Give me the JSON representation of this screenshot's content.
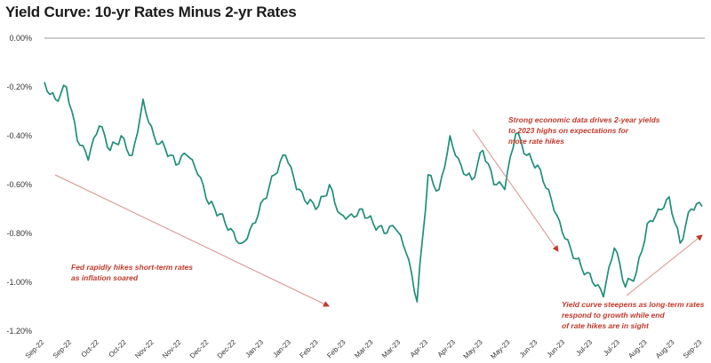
{
  "chart_data": {
    "type": "line",
    "title": "Yield Curve: 10-yr Rates Minus 2-yr Rates",
    "xlabel": "",
    "ylabel": "",
    "ylim": [
      -1.2,
      0.0
    ],
    "grid": false,
    "y_ticks": [
      "0.00%",
      "-0.20%",
      "-0.40%",
      "-0.60%",
      "-0.80%",
      "-1.00%",
      "-1.20%"
    ],
    "x_ticks": [
      "Sep-22",
      "Sep-22",
      "Oct-22",
      "Oct-22",
      "Nov-22",
      "Nov-22",
      "Dec-22",
      "Dec-22",
      "Jan-23",
      "Jan-23",
      "Feb-23",
      "Feb-23",
      "Mar-23",
      "Mar-23",
      "Apr-23",
      "Apr-23",
      "May-23",
      "May-23",
      "Jun-23",
      "Jun-23",
      "Jul-23",
      "Jul-23",
      "Aug-23",
      "Aug-23",
      "Sep-23"
    ],
    "line_color": "#1f8f78",
    "annotation_color": "#c0392b",
    "series": [
      {
        "x": [
          0,
          0.4,
          0.8,
          1.2,
          1.6,
          2.0,
          2.4,
          2.8,
          3.2,
          3.6,
          4.0,
          4.4,
          4.8,
          5.2,
          5.6,
          6.0,
          6.4,
          6.8,
          7.2,
          7.6,
          8.0,
          8.4,
          8.8,
          9.2,
          9.6,
          10.0,
          10.4,
          10.8,
          11.2,
          11.6,
          12.0,
          12.4,
          12.8,
          13.2,
          13.6,
          14.0,
          14.4,
          14.8,
          15.2,
          15.6,
          16.0,
          16.4,
          16.8,
          17.2,
          17.6,
          18.0,
          18.4,
          18.8,
          19.2,
          19.6,
          20.0,
          20.4,
          20.8,
          21.2,
          21.6,
          22.0,
          22.4,
          22.8,
          23.2,
          23.6,
          24.0
        ],
        "values": [
          -0.18,
          -0.25,
          -0.2,
          -0.42,
          -0.5,
          -0.36,
          -0.46,
          -0.4,
          -0.48,
          -0.25,
          -0.4,
          -0.45,
          -0.52,
          -0.48,
          -0.56,
          -0.68,
          -0.72,
          -0.78,
          -0.84,
          -0.76,
          -0.66,
          -0.56,
          -0.48,
          -0.62,
          -0.68,
          -0.69,
          -0.6,
          -0.72,
          -0.72,
          -0.7,
          -0.76,
          -0.8,
          -0.78,
          -0.88,
          -1.08,
          -0.56,
          -0.62,
          -0.4,
          -0.52,
          -0.58,
          -0.46,
          -0.6,
          -0.62,
          -0.39,
          -0.48,
          -0.52,
          -0.62,
          -0.75,
          -0.86,
          -0.94,
          -1.0,
          -1.06,
          -0.86,
          -1.02,
          -0.96,
          -0.76,
          -0.7,
          -0.65,
          -0.84,
          -0.7,
          -0.69
        ]
      }
    ],
    "annotations": [
      "Strong economic data drives 2-year yields to 2023 highs on expectations for more rate hikes",
      "Fed rapidly hikes short-term rates as inflation soared",
      "Yield curve steepens as long-term rates respond to growth while end of rate hikes are in sight"
    ]
  }
}
